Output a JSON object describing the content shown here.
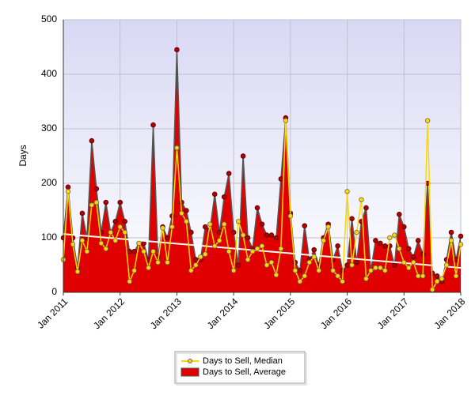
{
  "chart_data": {
    "type": "line",
    "ylabel": "Days",
    "categories": [
      "Jan 2011",
      null,
      null,
      null,
      null,
      null,
      null,
      null,
      null,
      null,
      null,
      null,
      "Jan 2012",
      null,
      null,
      null,
      null,
      null,
      null,
      null,
      null,
      null,
      null,
      null,
      "Jan 2013",
      null,
      null,
      null,
      null,
      null,
      null,
      null,
      null,
      null,
      null,
      null,
      "Jan 2014",
      null,
      null,
      null,
      null,
      null,
      null,
      null,
      null,
      null,
      null,
      null,
      "Jan 2015",
      null,
      null,
      null,
      null,
      null,
      null,
      null,
      null,
      null,
      null,
      null,
      "Jan 2016",
      null,
      null,
      null,
      null,
      null,
      null,
      null,
      null,
      null,
      null,
      null,
      "Jan 2017",
      null,
      null,
      null,
      null,
      null,
      null,
      null,
      null,
      null,
      null,
      null,
      "Jan 2018"
    ],
    "series": [
      {
        "name": "Days to Sell, Median",
        "color": "#ffd700",
        "style": "line",
        "values": [
          60,
          185,
          88,
          38,
          95,
          75,
          160,
          165,
          90,
          80,
          110,
          95,
          120,
          110,
          20,
          40,
          90,
          75,
          45,
          75,
          55,
          118,
          55,
          120,
          265,
          145,
          130,
          40,
          50,
          65,
          70,
          125,
          85,
          95,
          125,
          75,
          40,
          130,
          105,
          60,
          75,
          80,
          85,
          50,
          55,
          32,
          80,
          315,
          140,
          40,
          20,
          30,
          55,
          65,
          40,
          95,
          120,
          40,
          30,
          20,
          185,
          50,
          110,
          170,
          25,
          40,
          45,
          45,
          40,
          100,
          105,
          80,
          55,
          45,
          55,
          30,
          30,
          315,
          5,
          20,
          25,
          50,
          95,
          30,
          88
        ]
      },
      {
        "name": "Days to Sell, Average",
        "color": "#e00000",
        "style": "area",
        "values": [
          100,
          193,
          100,
          45,
          145,
          100,
          278,
          190,
          110,
          165,
          110,
          130,
          165,
          130,
          75,
          75,
          90,
          90,
          60,
          307,
          65,
          120,
          100,
          140,
          445,
          165,
          150,
          110,
          60,
          60,
          120,
          115,
          180,
          110,
          175,
          218,
          110,
          50,
          250,
          100,
          80,
          155,
          125,
          105,
          105,
          100,
          208,
          320,
          145,
          55,
          40,
          122,
          60,
          78,
          50,
          100,
          125,
          60,
          85,
          40,
          50,
          135,
          55,
          130,
          155,
          40,
          95,
          90,
          85,
          85,
          50,
          143,
          120,
          80,
          65,
          95,
          70,
          200,
          35,
          30,
          20,
          60,
          110,
          60,
          103
        ]
      }
    ],
    "trend": {
      "color": "#ffffff",
      "values": [
        107,
        45
      ]
    },
    "ylim": [
      0,
      500
    ],
    "yticks": [
      0,
      100,
      200,
      300,
      400,
      500
    ],
    "grid": true
  }
}
